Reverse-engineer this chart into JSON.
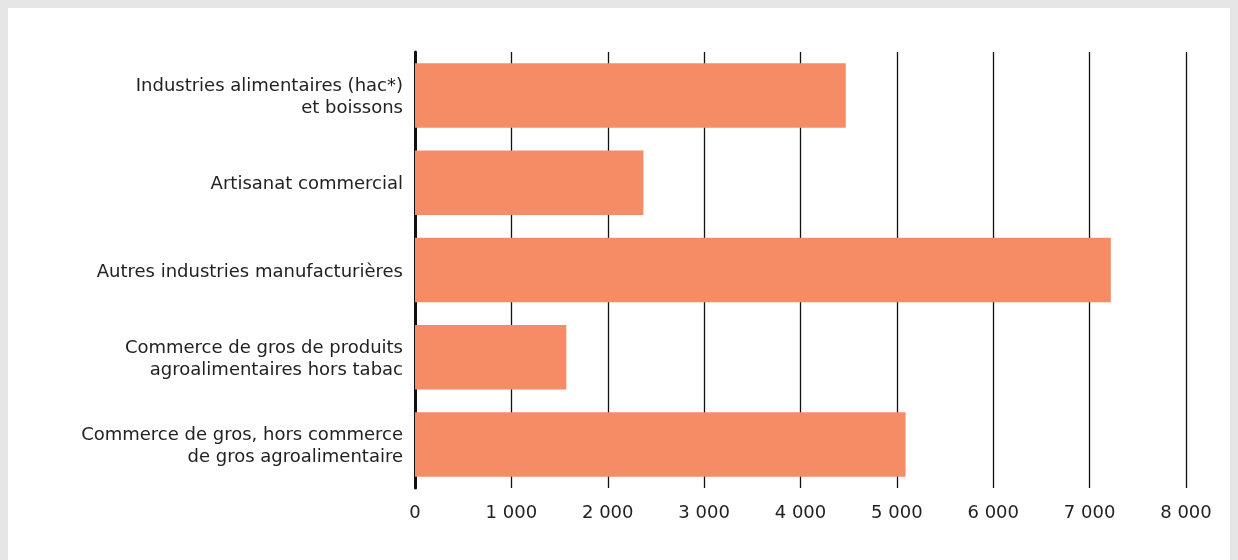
{
  "chart_data": {
    "type": "bar",
    "orientation": "horizontal",
    "categories": [
      "Industries alimentaires (hac*)\net boissons",
      "Artisanat commercial",
      "Autres industries manufacturières",
      "Commerce de gros de produits\nagroalimentaires hors tabac",
      "Commerce de gros, hors commerce\nde gros agroalimentaire"
    ],
    "values": [
      4470,
      2370,
      7220,
      1570,
      5090
    ],
    "color": "#f58c66",
    "xlim": [
      0,
      8000
    ],
    "xticks": [
      0,
      {
        "value": 1000,
        "label": "1 000"
      },
      {
        "value": 2000,
        "label": "2 000"
      },
      {
        "value": 3000,
        "label": "3 000"
      },
      {
        "value": 4000,
        "label": "4 000"
      },
      {
        "value": 5000,
        "label": "5 000"
      },
      {
        "value": 6000,
        "label": "6 000"
      },
      {
        "value": 7000,
        "label": "7 000"
      },
      {
        "value": 8000,
        "label": "8 000"
      }
    ],
    "grid": "x"
  }
}
